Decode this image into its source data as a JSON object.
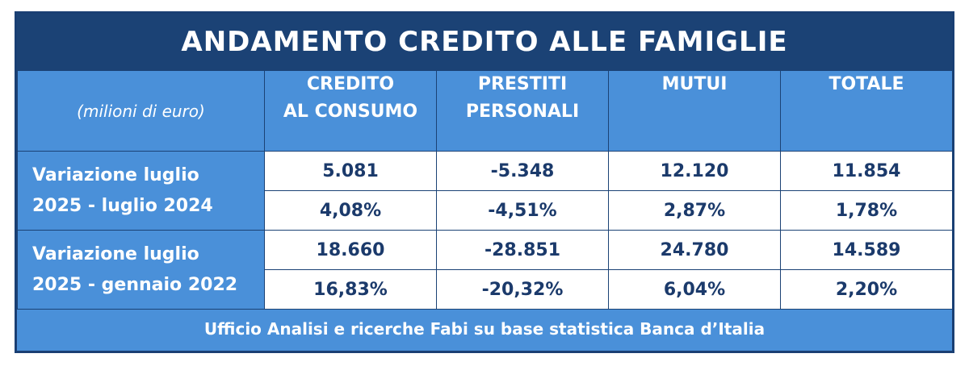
{
  "title": "ANDAMENTO CREDITO ALLE FAMIGLIE",
  "unit_label": "(milioni di euro)",
  "columns": [
    {
      "line1": "CREDITO",
      "line2": "AL CONSUMO"
    },
    {
      "line1": "PRESTITI",
      "line2": "PERSONALI"
    },
    {
      "line1": "MUTUI",
      "line2": ""
    },
    {
      "line1": "TOTALE",
      "line2": ""
    }
  ],
  "groups": [
    {
      "label_line1": "Variazione luglio",
      "label_line2": "2025 - luglio 2024",
      "absolute": [
        "5.081",
        "-5.348",
        "12.120",
        "11.854"
      ],
      "percent": [
        "4,08%",
        "-4,51%",
        "2,87%",
        "1,78%"
      ]
    },
    {
      "label_line1": "Variazione luglio",
      "label_line2": "2025 - gennaio 2022",
      "absolute": [
        "18.660",
        "-28.851",
        "24.780",
        "14.589"
      ],
      "percent": [
        "16,83%",
        "-20,32%",
        "6,04%",
        "2,20%"
      ]
    }
  ],
  "footer": "Ufficio Analisi e ricerche Fabi su base statistica Banca d’Italia",
  "colors": {
    "dark_blue": "#1b4275",
    "mid_blue": "#4a90d9",
    "value_text": "#1b3a6b",
    "cell_bg": "#ffffff"
  }
}
